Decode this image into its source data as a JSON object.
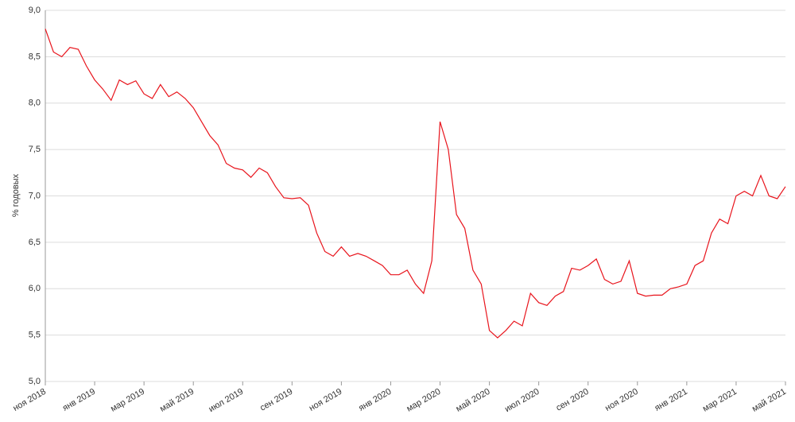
{
  "chart_data": {
    "type": "line",
    "y_label": "% годовых",
    "color": "#e8141c",
    "grid": true,
    "ylim": [
      5,
      9
    ],
    "yticks": [
      {
        "value": 5,
        "label": "5,0"
      },
      {
        "value": 5.5,
        "label": "5,5"
      },
      {
        "value": 6,
        "label": "6,0"
      },
      {
        "value": 6.5,
        "label": "6,5"
      },
      {
        "value": 7,
        "label": "7,0"
      },
      {
        "value": 7.5,
        "label": "7,5"
      },
      {
        "value": 8,
        "label": "8,0"
      },
      {
        "value": 8.5,
        "label": "8,5"
      },
      {
        "value": 9,
        "label": "9,0"
      }
    ],
    "categories": [
      "ноя 2018",
      null,
      null,
      null,
      null,
      null,
      "янв 2019",
      null,
      null,
      null,
      null,
      null,
      "мар 2019",
      null,
      null,
      null,
      null,
      null,
      "май 2019",
      null,
      null,
      null,
      null,
      null,
      "июл 2019",
      null,
      null,
      null,
      null,
      null,
      "сен 2019",
      null,
      null,
      null,
      null,
      null,
      "ноя 2019",
      null,
      null,
      null,
      null,
      null,
      "янв 2020",
      null,
      null,
      null,
      null,
      null,
      "мар 2020",
      null,
      null,
      null,
      null,
      null,
      "май 2020",
      null,
      null,
      null,
      null,
      null,
      "июл 2020",
      null,
      null,
      null,
      null,
      null,
      "сен 2020",
      null,
      null,
      null,
      null,
      null,
      "ноя 2020",
      null,
      null,
      null,
      null,
      null,
      "янв 2021",
      null,
      null,
      null,
      null,
      null,
      "мар 2021",
      null,
      null,
      null,
      null,
      null,
      "май 2021"
    ],
    "values": [
      8.8,
      8.55,
      8.5,
      8.6,
      8.58,
      8.4,
      8.25,
      8.15,
      8.03,
      8.25,
      8.2,
      8.24,
      8.1,
      8.05,
      8.2,
      8.07,
      8.12,
      8.05,
      7.95,
      7.8,
      7.65,
      7.55,
      7.35,
      7.3,
      7.28,
      7.2,
      7.3,
      7.25,
      7.1,
      6.98,
      6.97,
      6.98,
      6.9,
      6.6,
      6.4,
      6.35,
      6.45,
      6.35,
      6.38,
      6.35,
      6.3,
      6.25,
      6.15,
      6.15,
      6.2,
      6.05,
      5.95,
      6.3,
      7.8,
      7.5,
      6.8,
      6.65,
      6.2,
      6.05,
      5.55,
      5.47,
      5.55,
      5.65,
      5.6,
      5.95,
      5.85,
      5.82,
      5.92,
      5.97,
      6.22,
      6.2,
      6.25,
      6.32,
      6.1,
      6.05,
      6.08,
      6.3,
      5.95,
      5.92,
      5.93,
      5.93,
      6.0,
      6.02,
      6.05,
      6.25,
      6.3,
      6.6,
      6.75,
      6.7,
      7.0,
      7.05,
      7.0,
      7.22,
      7.0,
      6.97,
      7.1
    ]
  }
}
